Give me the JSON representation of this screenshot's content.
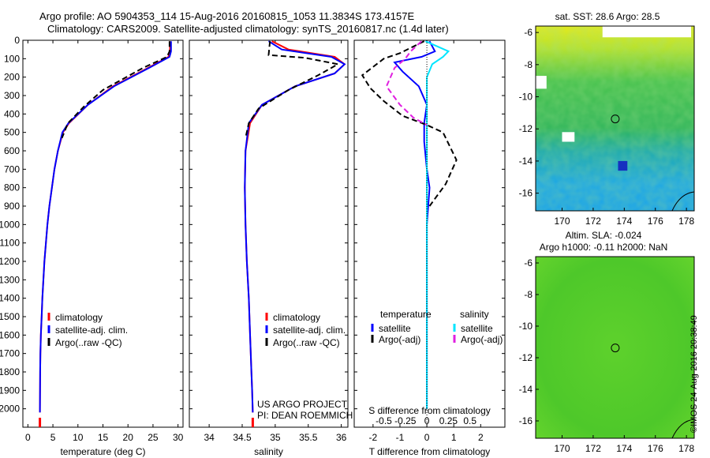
{
  "header": {
    "title_line1": "Argo profile: AO 5904353_114 15-Aug-2016 20160815_1053 11.3834S 173.4157E",
    "title_line2": "Climatology: CARS2009. Satellite-adjusted climatology: synTS_20160817.nc (1.4d later)"
  },
  "credit": "©IMOS 24-Aug-2016 20:38:49",
  "colors": {
    "climatology": "#ff0000",
    "satellite": "#0000ff",
    "argo": "#000000",
    "sat_salinity": "#00e5ff",
    "argo_salinity": "#e020e0"
  },
  "chart_data": [
    {
      "type": "line",
      "xlabel": "temperature (deg C)",
      "ylim": [
        2100,
        0
      ],
      "xlim": [
        -1,
        31
      ],
      "xticks": [
        0,
        5,
        10,
        15,
        20,
        25,
        30
      ],
      "yticks": [
        0,
        100,
        200,
        300,
        400,
        500,
        600,
        700,
        800,
        900,
        1000,
        1100,
        1200,
        1300,
        1400,
        1500,
        1600,
        1700,
        1800,
        1900,
        2000
      ],
      "legend": [
        "climatology",
        "satellite-adj. clim.",
        "Argo(..raw -QC)"
      ],
      "series": [
        {
          "name": "climatology",
          "color": "#ff0000",
          "style": "solid",
          "x": [
            28.4,
            28.4,
            28.1,
            24,
            17,
            12,
            8.2,
            7,
            6,
            5.3,
            4.8,
            4.3,
            3.9,
            3.6,
            3.3,
            3.1,
            2.9,
            2.75,
            2.6,
            2.5,
            2.45,
            2.4
          ],
          "y": [
            5,
            60,
            90,
            150,
            250,
            350,
            450,
            500,
            600,
            700,
            800,
            900,
            1000,
            1100,
            1200,
            1300,
            1400,
            1500,
            1600,
            1700,
            1800,
            2020
          ]
        },
        {
          "name": "satellite-adj. clim.",
          "color": "#0000ff",
          "style": "solid",
          "x": [
            28.6,
            28.6,
            28.3,
            24.2,
            17.2,
            12,
            8.1,
            6.9,
            6,
            5.3,
            4.8,
            4.3,
            3.9,
            3.6,
            3.3,
            3.1,
            2.9,
            2.75,
            2.6,
            2.5,
            2.45,
            2.4
          ],
          "y": [
            5,
            60,
            90,
            150,
            250,
            350,
            450,
            500,
            600,
            700,
            800,
            900,
            1000,
            1100,
            1200,
            1300,
            1400,
            1500,
            1600,
            1700,
            1800,
            2020
          ]
        },
        {
          "name": "Argo(..raw -QC)",
          "color": "#000000",
          "style": "dashed",
          "x": [
            28.3,
            28.3,
            27.8,
            23,
            15,
            11.2,
            8,
            6.8
          ],
          "y": [
            5,
            60,
            90,
            150,
            270,
            360,
            450,
            530
          ]
        }
      ]
    },
    {
      "type": "line",
      "xlabel": "salinity",
      "ylim": [
        2100,
        0
      ],
      "xlim": [
        33.7,
        36.1
      ],
      "xticks": [
        34,
        34.5,
        35,
        35.5,
        36
      ],
      "legend": [
        "climatology",
        "satellite-adj. clim.",
        "Argo(..raw -QC)"
      ],
      "annotation": [
        "US ARGO PROJECT",
        "PI: DEAN ROEMMICH"
      ],
      "series": [
        {
          "name": "climatology",
          "color": "#ff0000",
          "style": "solid",
          "x": [
            34.95,
            35.2,
            35.9,
            36.05,
            35.9,
            35.3,
            34.8,
            34.62,
            34.55,
            34.54,
            34.55,
            34.57,
            34.6,
            34.62,
            34.64,
            34.65,
            34.66
          ],
          "y": [
            5,
            50,
            90,
            130,
            180,
            250,
            350,
            450,
            600,
            800,
            1000,
            1200,
            1400,
            1600,
            1800,
            1900,
            2020
          ]
        },
        {
          "name": "satellite-adj. clim.",
          "color": "#0000ff",
          "style": "solid",
          "x": [
            34.9,
            35.1,
            35.85,
            36.05,
            35.9,
            35.3,
            34.8,
            34.6,
            34.55,
            34.54,
            34.55,
            34.57,
            34.6,
            34.62,
            34.64,
            34.65,
            34.66
          ],
          "y": [
            5,
            50,
            90,
            130,
            180,
            250,
            350,
            450,
            600,
            800,
            1000,
            1200,
            1400,
            1600,
            1800,
            1900,
            2020
          ]
        },
        {
          "name": "Argo(..raw -QC)",
          "color": "#000000",
          "style": "dashed",
          "x": [
            34.92,
            34.9,
            35.45,
            35.95,
            35.65,
            35.2,
            34.75,
            34.6,
            34.55
          ],
          "y": [
            5,
            80,
            95,
            130,
            190,
            270,
            370,
            450,
            530
          ]
        }
      ]
    },
    {
      "type": "line",
      "xlabel": "T difference from climatology",
      "x2label": "S difference from climatology",
      "ylim": [
        2100,
        0
      ],
      "xlim": [
        -2.7,
        2.9
      ],
      "xticks": [
        -2,
        -1,
        0,
        1,
        2
      ],
      "x2ticks": [
        "-0.5",
        "-0.25",
        "0",
        "0.25",
        "0.5"
      ],
      "legend_left_title": "temperature",
      "legend_right_title": "salinity",
      "legend": [
        "satellite",
        "Argo(-adj)",
        "satellite",
        "Argo(-adj)"
      ],
      "series": [
        {
          "name": "satellite",
          "color": "#0000ff",
          "style": "solid",
          "x": [
            0.1,
            0.3,
            -0.2,
            -1.2,
            -0.9,
            -0.3,
            0,
            -0.1,
            -0.1,
            0,
            0.1,
            0,
            0,
            0
          ],
          "y": [
            5,
            60,
            90,
            120,
            170,
            250,
            350,
            450,
            550,
            700,
            800,
            1000,
            1500,
            2000
          ]
        },
        {
          "name": "Argo(-adj)",
          "color": "#000000",
          "style": "dashed",
          "x": [
            -0.1,
            -1,
            -1.6,
            -2.4,
            -2.1,
            -1.6,
            -0.9,
            0,
            0.6,
            1.1,
            0.7,
            0.3,
            0.1
          ],
          "y": [
            5,
            70,
            100,
            190,
            260,
            330,
            410,
            460,
            500,
            650,
            780,
            860,
            900
          ]
        },
        {
          "name": "satellite",
          "color": "#00e5ff",
          "style": "solid",
          "x": [
            -0.05,
            0.8,
            0.6,
            0.2,
            0,
            0,
            0,
            0,
            0,
            0,
            0
          ],
          "y": [
            5,
            60,
            90,
            130,
            200,
            300,
            500,
            800,
            1200,
            1600,
            2000
          ]
        },
        {
          "name": "Argo(-adj)",
          "color": "#e020e0",
          "style": "dashed",
          "x": [
            -0.2,
            -0.6,
            -0.8,
            -1.2,
            -1.5,
            -1,
            -0.5,
            0
          ],
          "y": [
            5,
            60,
            100,
            150,
            250,
            350,
            420,
            460
          ]
        }
      ]
    },
    {
      "type": "heatmap",
      "title": "sat. SST: 28.6  Argo: 28.5",
      "xlim": [
        168.3,
        178.5
      ],
      "ylim": [
        -17.1,
        -5.6
      ],
      "xticks": [
        170,
        172,
        174,
        176,
        178
      ],
      "yticks": [
        -6,
        -8,
        -10,
        -12,
        -14,
        -16
      ],
      "marker": {
        "lon": 173.42,
        "lat": -11.38
      }
    },
    {
      "type": "heatmap",
      "title": "Altim. SLA: -0.024",
      "subtitle": "Argo h1000: -0.11 h2000: NaN",
      "xlim": [
        168.3,
        178.5
      ],
      "ylim": [
        -17.1,
        -5.6
      ],
      "xticks": [
        170,
        172,
        174,
        176,
        178
      ],
      "yticks": [
        -6,
        -8,
        -10,
        -12,
        -14,
        -16
      ],
      "marker": {
        "lon": 173.42,
        "lat": -11.38
      }
    }
  ]
}
